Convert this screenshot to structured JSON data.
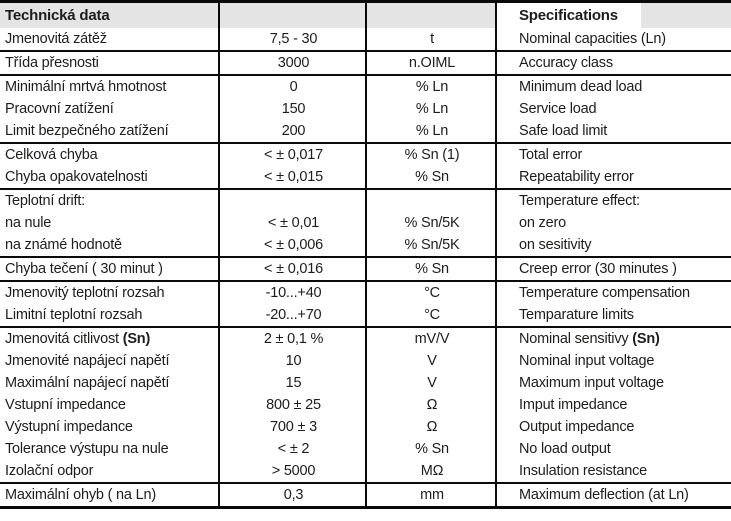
{
  "header": {
    "left_title": "Technická data",
    "right_title": "Specifications"
  },
  "colors": {
    "header_bg": "#e4e4e4",
    "rule_line": "#0a0a0a",
    "text": "#1d1d1b"
  },
  "table": {
    "columns": [
      "czech-label",
      "value",
      "unit",
      "english-label"
    ],
    "rows": [
      {
        "cs": "Jmenovitá zátěž",
        "value": "7,5 - 30",
        "unit": "t",
        "en": "Nominal capacities (Ln)",
        "group_end": true
      },
      {
        "cs": "Třída přesnosti",
        "value": "3000",
        "unit": "n.OIML",
        "en": "Accuracy class",
        "group_end": true
      },
      {
        "cs": "Minimální mrtvá hmotnost",
        "value": "0",
        "unit": "% Ln",
        "en": "Minimum dead load",
        "group_end": false
      },
      {
        "cs": "Pracovní zatížení",
        "value": "150",
        "unit": "% Ln",
        "en": "Service load",
        "group_end": false
      },
      {
        "cs": "Limit bezpečného zatížení",
        "value": "200",
        "unit": "% Ln",
        "en": "Safe load limit",
        "group_end": true
      },
      {
        "cs": "Celková chyba",
        "value": "< ± 0,017",
        "unit": "% Sn (1)",
        "en": "Total error",
        "group_end": false
      },
      {
        "cs": "Chyba opakovatelnosti",
        "value": "< ± 0,015",
        "unit": "% Sn",
        "en": "Repeatability error",
        "group_end": true
      },
      {
        "cs": "Teplotní drift:",
        "value": "",
        "unit": "",
        "en": "Temperature effect:",
        "group_end": false
      },
      {
        "cs": "na nule",
        "value": "< ± 0,01",
        "unit": "% Sn/5K",
        "en": "on zero",
        "group_end": false
      },
      {
        "cs": "na známé hodnotě",
        "value": "< ± 0,006",
        "unit": "% Sn/5K",
        "en": "on sesitivity",
        "group_end": true
      },
      {
        "cs": "Chyba tečení ( 30 minut )",
        "value": "< ± 0,016",
        "unit": "% Sn",
        "en": "Creep error (30 minutes )",
        "group_end": true
      },
      {
        "cs": "Jmenovitý teplotní rozsah",
        "value": "-10...+40",
        "unit": "°C",
        "en": "Temperature compensation",
        "group_end": false
      },
      {
        "cs": "Limitní teplotní rozsah",
        "value": "-20...+70",
        "unit": "°C",
        "en": "Temparature limits",
        "group_end": true
      },
      {
        "cs": "Jmenovitá citlivost ",
        "cs_bold": "(Sn)",
        "value": "2 ± 0,1 %",
        "unit": "mV/V",
        "en": "Nominal sensitivy ",
        "en_bold": "(Sn)",
        "group_end": false
      },
      {
        "cs": "Jmenovité napájecí napětí",
        "value": "10",
        "unit": "V",
        "en": "Nominal input voltage",
        "group_end": false
      },
      {
        "cs": "Maximální napájecí napětí",
        "value": "15",
        "unit": "V",
        "en": "Maximum input voltage",
        "group_end": false
      },
      {
        "cs": "Vstupní impedance",
        "value": "800 ± 25",
        "unit": "Ω",
        "en": "Imput impedance",
        "group_end": false
      },
      {
        "cs": "Výstupní impedance",
        "value": "700 ± 3",
        "unit": "Ω",
        "en": "Output impedance",
        "group_end": false
      },
      {
        "cs": "Tolerance výstupu na nule",
        "value": "< ± 2",
        "unit": "% Sn",
        "en": "No load output",
        "group_end": false
      },
      {
        "cs": "Izolační odpor",
        "value": "> 5000",
        "unit": "MΩ",
        "en": "Insulation resistance",
        "group_end": true
      },
      {
        "cs": "Maximální ohyb ( na Ln)",
        "value": "0,3",
        "unit": "mm",
        "en": "Maximum deflection (at Ln)",
        "group_end": false
      }
    ]
  }
}
